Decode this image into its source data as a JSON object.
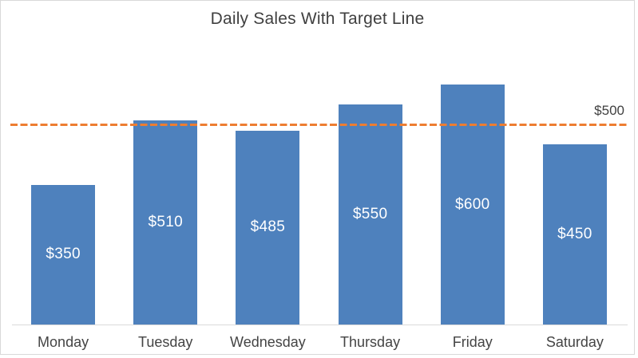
{
  "chart_data": {
    "type": "bar",
    "title": "Daily Sales With Target Line",
    "categories": [
      "Monday",
      "Tuesday",
      "Wednesday",
      "Thursday",
      "Friday",
      "Saturday"
    ],
    "values": [
      350,
      510,
      485,
      550,
      600,
      450
    ],
    "data_labels": [
      "$350",
      "$510",
      "$485",
      "$550",
      "$600",
      "$450"
    ],
    "target_line": {
      "value": 500,
      "label": "$500"
    },
    "ylim": [
      0,
      700
    ],
    "grid": false,
    "legend": "none",
    "xlabel": "",
    "ylabel": "",
    "colors": {
      "bar": "#4e81bd",
      "target_line": "#ed7d31",
      "axis_line": "#d9d9d9",
      "chart_border": "#d9d9d9",
      "title_text": "#404040",
      "axis_text": "#444444",
      "target_label_text": "#404040",
      "data_label_text": "#ffffff",
      "background": "#ffffff"
    }
  }
}
